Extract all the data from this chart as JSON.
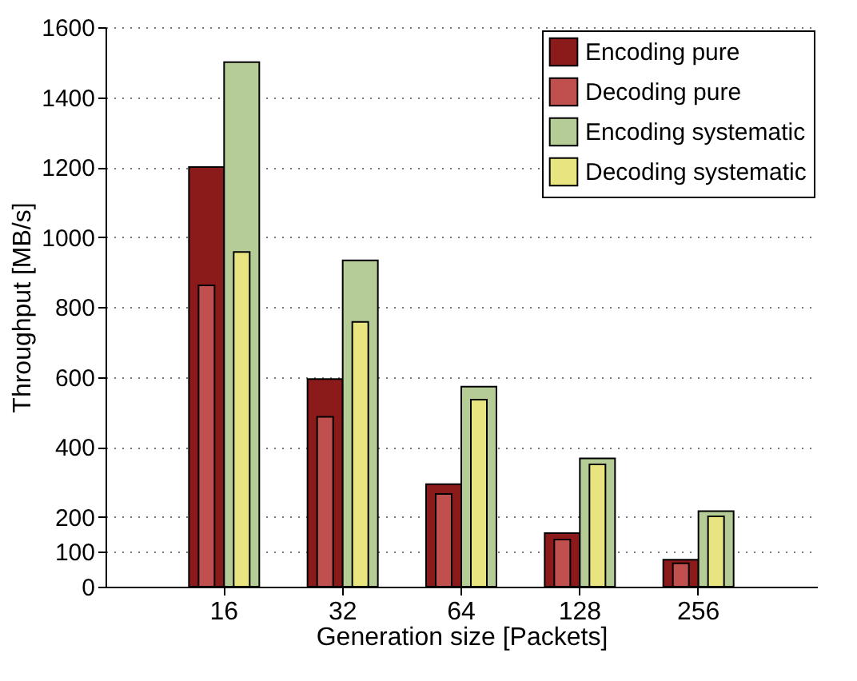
{
  "chart_data": {
    "type": "bar",
    "xlabel": "Generation size [Packets]",
    "ylabel": "Throughput [MB/s]",
    "categories": [
      "16",
      "32",
      "64",
      "128",
      "256"
    ],
    "series": [
      {
        "name": "Encoding pure",
        "color": "#8b1a1a",
        "values": [
          1200,
          594,
          293,
          153,
          77
        ]
      },
      {
        "name": "Decoding pure",
        "color": "#c0504d",
        "values": [
          862,
          486,
          265,
          135,
          67
        ]
      },
      {
        "name": "Encoding systematic",
        "color": "#b5cc96",
        "values": [
          1500,
          933,
          572,
          367,
          216
        ]
      },
      {
        "name": "Decoding systematic",
        "color": "#e8e47f",
        "values": [
          957,
          757,
          535,
          350,
          201
        ]
      }
    ],
    "ylim": [
      0,
      1600
    ],
    "yticks": [
      0,
      100,
      200,
      400,
      600,
      800,
      1000,
      1200,
      1400,
      1600
    ],
    "grid": "y",
    "legend": "top right"
  }
}
